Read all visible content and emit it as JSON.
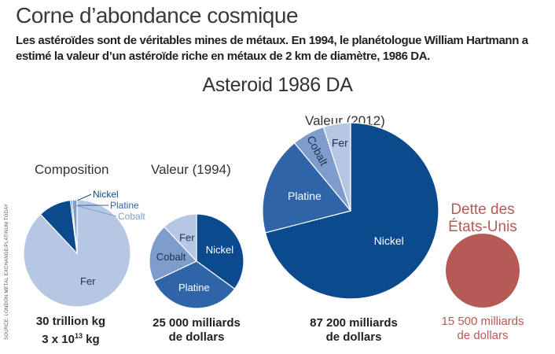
{
  "header": {
    "title": "Corne d’abondance cosmique",
    "subtitle": "Les astéroïdes sont de véritables mines de métaux. En 1994, le planétologue William Hartmann a estimé la valeur d’un astéroïde riche en métaux de 2 km de diamètre, 1986 DA."
  },
  "source_note": "SOURCE: LONDON METAL EXCHANGE/PLATINUM TODAY",
  "chart_data": {
    "type": "pie",
    "title": "Asteroid 1986 DA",
    "charts": [
      {
        "title": "Composition",
        "total_label_line1": "30 trillion kg",
        "total_label_line2_base": "3 x 10",
        "total_label_line2_exp": "13",
        "total_label_line2_unit": " kg",
        "slices": [
          {
            "name": "Fer",
            "value": 88,
            "color": "#b6c7e3",
            "text_color": "#1f2f50",
            "label_pos": "inside"
          },
          {
            "name": "Nickel",
            "value": 10,
            "color": "#0c4a8e",
            "text_color": "#0c4a8e",
            "label_pos": "outside"
          },
          {
            "name": "Platine",
            "value": 0.5,
            "color": "#2f64a8",
            "text_color": "#2f64a8",
            "label_pos": "outside"
          },
          {
            "name": "Cobalt",
            "value": 1.5,
            "color": "#7f9dcc",
            "text_color": "#7f9dcc",
            "label_pos": "outside"
          }
        ]
      },
      {
        "title": "Valeur (1994)",
        "total_label_line1": "25 000 milliards",
        "total_label_line2": "de dollars",
        "slices": [
          {
            "name": "Nickel",
            "value": 35,
            "color": "#0c4a8e",
            "text_color": "#ffffff",
            "label_pos": "inside"
          },
          {
            "name": "Platine",
            "value": 33,
            "color": "#2f64a8",
            "text_color": "#ffffff",
            "label_pos": "inside"
          },
          {
            "name": "Cobalt",
            "value": 20,
            "color": "#7f9dcc",
            "text_color": "#1f2f50",
            "label_pos": "inside"
          },
          {
            "name": "Fer",
            "value": 12,
            "color": "#b6c7e3",
            "text_color": "#1f2f50",
            "label_pos": "inside"
          }
        ]
      },
      {
        "title": "Valeur (2012)",
        "total_label_line1": "87 200 milliards",
        "total_label_line2": "de dollars",
        "slices": [
          {
            "name": "Nickel",
            "value": 71,
            "color": "#0c4a8e",
            "text_color": "#ffffff",
            "label_pos": "inside"
          },
          {
            "name": "Platine",
            "value": 18,
            "color": "#2f64a8",
            "text_color": "#ffffff",
            "label_pos": "inside"
          },
          {
            "name": "Cobalt",
            "value": 6,
            "color": "#7f9dcc",
            "text_color": "#1f2f50",
            "label_pos": "inside",
            "rotate_label": true
          },
          {
            "name": "Fer",
            "value": 5,
            "color": "#b6c7e3",
            "text_color": "#1f2f50",
            "label_pos": "inside"
          }
        ]
      },
      {
        "title": "Dette des États-Unis",
        "total_label_line1": "15 500 milliards",
        "total_label_line2": "de dollars",
        "color": "#b55a55",
        "slices": [
          {
            "name": "Dette des États-Unis",
            "value": 100,
            "color": "#b55a55"
          }
        ]
      }
    ]
  }
}
